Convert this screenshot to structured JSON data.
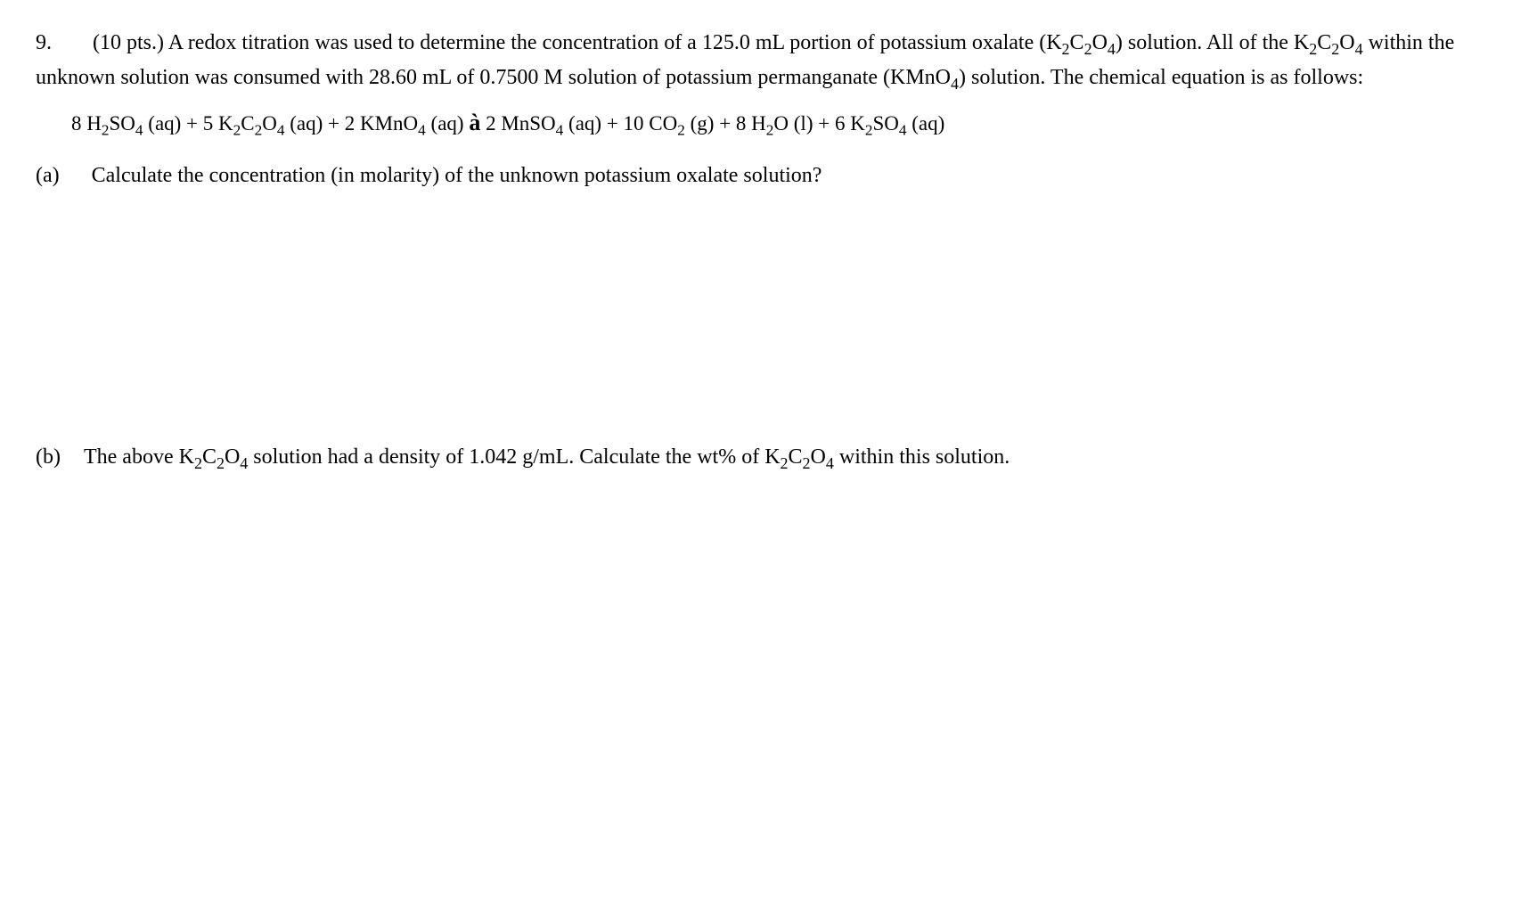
{
  "problem": {
    "number": "9.",
    "points": "(10 pts.)",
    "intro_text_1": "A redox titration was used to determine the concentration of a 125.0 mL portion of potassium oxalate (K",
    "intro_text_2": ") solution.  All of the K",
    "intro_text_3": " within the unknown solution was consumed with 28.60 mL of 0.7500 M solution of potassium permanganate (KMnO",
    "intro_text_4": ") solution.  The chemical equation is as follows:"
  },
  "equation": {
    "reactant1_coef": "8 H",
    "reactant1_sub1": "2",
    "reactant1_mid": "SO",
    "reactant1_sub2": "4",
    "reactant1_state": " (aq) + 5 K",
    "reactant2_sub1": "2",
    "reactant2_mid": "C",
    "reactant2_sub2": "2",
    "reactant2_mid2": "O",
    "reactant2_sub3": "4",
    "reactant2_state": " (aq) + 2 KMnO",
    "reactant3_sub": "4",
    "reactant3_state": " (aq) ",
    "arrow": "à",
    "product1": " 2 MnSO",
    "product1_sub": "4",
    "product1_state": " (aq) + 10 CO",
    "product2_sub": "2",
    "product2_state": " (g) + 8 H",
    "product3_sub": "2",
    "product3_state": "O (l) + 6 K",
    "product4_sub1": "2",
    "product4_mid": "SO",
    "product4_sub2": "4",
    "product4_state": " (aq)"
  },
  "part_a": {
    "label": "(a)",
    "text": "Calculate the concentration (in molarity) of the unknown potassium oxalate solution?"
  },
  "part_b": {
    "label": "(b)",
    "text_1": "The above K",
    "text_2": " solution had a density of 1.042 g/mL.  Calculate the wt% of K",
    "text_3": " within this solution."
  },
  "formulas": {
    "k2c2o4_sub1": "2",
    "k2c2o4_mid1": "C",
    "k2c2o4_sub2": "2",
    "k2c2o4_mid2": "O",
    "k2c2o4_sub3": "4",
    "kmno4_sub": "4"
  }
}
